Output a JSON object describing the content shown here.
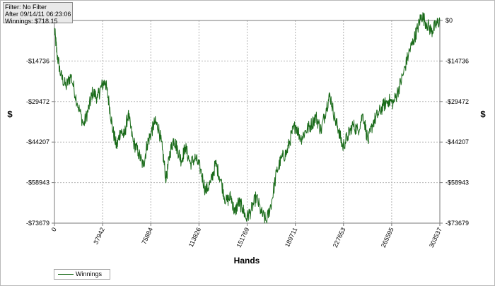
{
  "info": {
    "filter": "Filter: No Filter",
    "after": "After 09/14/11 06:23:06",
    "winnings": "Winnings: $718.15"
  },
  "colors": {
    "series": "#1a6b1a",
    "grid": "#b5b5b5",
    "axis": "#7a7a7a"
  },
  "chart_data": {
    "type": "line",
    "xlabel": "Hands",
    "ylabel": "$",
    "xlim": [
      0,
      303537
    ],
    "ylim": [
      -73679,
      0
    ],
    "x_ticks": [
      "0",
      "37942",
      "75884",
      "113826",
      "151769",
      "189711",
      "227653",
      "265595",
      "303537"
    ],
    "y_ticks": [
      "$0",
      "-$14736",
      "-$29472",
      "-$44207",
      "-$58943",
      "-$73679"
    ],
    "grid": true,
    "legend_position": "bottom-left",
    "series": [
      {
        "name": "Winnings",
        "x": [
          0,
          2000,
          5000,
          9000,
          13000,
          18000,
          23000,
          27000,
          30000,
          34000,
          37000,
          40000,
          43000,
          46000,
          49000,
          52000,
          55000,
          58000,
          62000,
          66000,
          70000,
          73000,
          76000,
          79000,
          82000,
          85000,
          88000,
          91000,
          94000,
          97000,
          100000,
          103000,
          107000,
          111000,
          115000,
          119000,
          123000,
          127000,
          131000,
          135000,
          139000,
          142000,
          145000,
          148000,
          151000,
          155000,
          159000,
          163000,
          167000,
          171000,
          175000,
          179000,
          183000,
          187000,
          190000,
          194000,
          198000,
          202000,
          206000,
          210000,
          214000,
          217000,
          221000,
          224000,
          227000,
          231000,
          235000,
          239000,
          243000,
          247000,
          251000,
          255000,
          259000,
          263000,
          267000,
          271000,
          275000,
          279000,
          283000,
          286000,
          289000,
          293000,
          297000,
          300000,
          303537
        ],
        "y": [
          -3000,
          -12000,
          -20000,
          -24000,
          -20000,
          -30000,
          -38000,
          -32000,
          -26000,
          -28000,
          -24000,
          -22000,
          -30000,
          -40000,
          -46000,
          -40000,
          -42000,
          -34000,
          -44000,
          -48000,
          -53000,
          -45000,
          -41000,
          -37000,
          -39000,
          -47000,
          -58000,
          -48000,
          -43000,
          -47000,
          -51000,
          -46000,
          -52000,
          -50000,
          -54000,
          -62000,
          -59000,
          -52000,
          -58000,
          -66000,
          -64000,
          -70000,
          -66000,
          -68000,
          -72000,
          -69000,
          -64000,
          -70000,
          -73000,
          -66000,
          -55000,
          -50000,
          -48000,
          -41000,
          -38000,
          -43000,
          -40000,
          -38000,
          -35000,
          -40000,
          -32000,
          -27000,
          -36000,
          -40000,
          -46000,
          -42000,
          -38000,
          -40000,
          -34000,
          -44000,
          -37000,
          -34000,
          -31000,
          -29000,
          -30000,
          -25000,
          -19000,
          -12000,
          -7000,
          -3000,
          2000,
          -1000,
          -4000,
          -2000,
          0
        ]
      }
    ]
  }
}
